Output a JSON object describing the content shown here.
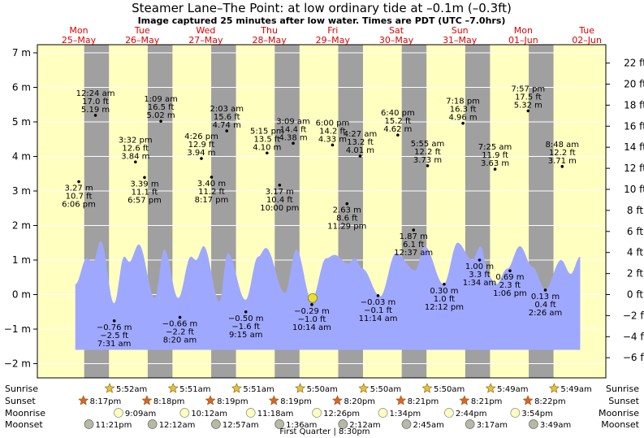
{
  "title": "Steamer Lane–The Point: at low  ordinary tide at –0.1m (–0.3ft)",
  "subtitle": "Image captured 25 minutes after low water. Times are PDT (UTC –7.0hrs)",
  "chart_data": {
    "type": "area",
    "day_labels": [
      {
        "dow": "Mon",
        "date": "25–May"
      },
      {
        "dow": "Tue",
        "date": "26–May"
      },
      {
        "dow": "Wed",
        "date": "27–May"
      },
      {
        "dow": "Thu",
        "date": "28–May"
      },
      {
        "dow": "Fri",
        "date": "29–May"
      },
      {
        "dow": "Sat",
        "date": "30–May"
      },
      {
        "dow": "Sun",
        "date": "31–May"
      },
      {
        "dow": "Mon",
        "date": "01–Jun"
      },
      {
        "dow": "Tue",
        "date": "02–Jun"
      }
    ],
    "y_left_unit": "m",
    "y_left_range": [
      -2.2,
      7.2
    ],
    "y_left_ticks": [
      "7 m",
      "6 m",
      "5 m",
      "4 m",
      "3 m",
      "2 m",
      "1 m",
      "0 m",
      "−1 m",
      "−2 m"
    ],
    "y_right_ticks": [
      "22 ft",
      "20 ft",
      "18 ft",
      "16 ft",
      "14 ft",
      "12 ft",
      "10 ft",
      "8 ft",
      "6 ft",
      "4 ft",
      "2 ft",
      "0 ft",
      "−2 ft",
      "−4 ft",
      "−6 ft"
    ],
    "night_bands": [
      [
        0.84,
        1.23
      ],
      [
        1.84,
        2.23
      ],
      [
        2.84,
        3.23
      ],
      [
        3.84,
        4.23
      ],
      [
        4.84,
        5.23
      ],
      [
        5.84,
        6.23
      ],
      [
        6.84,
        7.23
      ],
      [
        7.84,
        8.23
      ]
    ],
    "tide_events": [
      {
        "t": 0.755,
        "m": 3.27,
        "lines": [
          "3.27 m",
          "10.7 ft",
          "6:06 pm"
        ],
        "pos": "below"
      },
      {
        "t": 1.017,
        "m": 5.19,
        "lines": [
          "12:24 am",
          "17.0 ft",
          "5.19 m"
        ],
        "pos": "above"
      },
      {
        "t": 1.313,
        "m": -0.76,
        "lines": [
          "−0.76 m",
          "−2.5 ft",
          "7:31 am"
        ],
        "pos": "below"
      },
      {
        "t": 1.647,
        "m": 3.84,
        "lines": [
          "3:32 pm",
          "12.6 ft",
          "3.84 m"
        ],
        "pos": "above"
      },
      {
        "t": 1.79,
        "m": 3.39,
        "lines": [
          "3.39 m",
          "11.1 ft",
          "6:57 pm"
        ],
        "pos": "below"
      },
      {
        "t": 2.047,
        "m": 5.02,
        "lines": [
          "1:09 am",
          "16.5 ft",
          "5.02 m"
        ],
        "pos": "above"
      },
      {
        "t": 2.347,
        "m": -0.66,
        "lines": [
          "−0.66 m",
          "−2.2 ft",
          "8:20 am"
        ],
        "pos": "below"
      },
      {
        "t": 2.685,
        "m": 3.94,
        "lines": [
          "4:26 pm",
          "12.9 ft",
          "3.94 m"
        ],
        "pos": "above"
      },
      {
        "t": 2.845,
        "m": 3.4,
        "lines": [
          "3.40 m",
          "11.2 ft",
          "8:17 pm"
        ],
        "pos": "below"
      },
      {
        "t": 3.085,
        "m": 4.74,
        "lines": [
          "2:03 am",
          "15.6 ft",
          "4.74 m"
        ],
        "pos": "above"
      },
      {
        "t": 3.385,
        "m": -0.5,
        "lines": [
          "−0.50 m",
          "−1.6 ft",
          "9:15 am"
        ],
        "pos": "below"
      },
      {
        "t": 3.719,
        "m": 4.1,
        "lines": [
          "5:15 pm",
          "13.5 ft",
          "4.10 m"
        ],
        "pos": "above"
      },
      {
        "t": 3.917,
        "m": 3.17,
        "lines": [
          "3.17 m",
          "10.4 ft",
          "10:00 pm"
        ],
        "pos": "below"
      },
      {
        "t": 4.131,
        "m": 4.38,
        "lines": [
          "3:09 am",
          "14.4 ft",
          "4.38 m"
        ],
        "pos": "above"
      },
      {
        "t": 4.424,
        "m": -0.29,
        "lines": [
          "−0.29 m",
          "−1.0 ft",
          "10:14 am"
        ],
        "pos": "below"
      },
      {
        "t": 4.75,
        "m": 4.33,
        "lines": [
          "6:00 pm",
          "14.2 ft",
          "4.33 m"
        ],
        "pos": "above"
      },
      {
        "t": 4.978,
        "m": 2.63,
        "lines": [
          "2.63 m",
          "8.6 ft",
          "11:29 pm"
        ],
        "pos": "below"
      },
      {
        "t": 5.185,
        "m": 4.01,
        "lines": [
          "4:27 am",
          "13.2 ft",
          "4.01 m"
        ],
        "pos": "above"
      },
      {
        "t": 5.467,
        "m": -0.03,
        "lines": [
          "−0.03 m",
          "−0.1 ft",
          "11:14 am"
        ],
        "pos": "below"
      },
      {
        "t": 5.778,
        "m": 4.62,
        "lines": [
          "6:40 pm",
          "15.2 ft",
          "4.62 m"
        ],
        "pos": "above"
      },
      {
        "t": 6.026,
        "m": 1.87,
        "lines": [
          "1.87 m",
          "6.1 ft",
          "12:37 am"
        ],
        "pos": "below"
      },
      {
        "t": 6.247,
        "m": 3.73,
        "lines": [
          "5:55 am",
          "12.2 ft",
          "3.73 m"
        ],
        "pos": "above"
      },
      {
        "t": 6.508,
        "m": 0.3,
        "lines": [
          "0.30 m",
          "1.0 ft",
          "12:12 pm"
        ],
        "pos": "below"
      },
      {
        "t": 6.804,
        "m": 4.96,
        "lines": [
          "7:18 pm",
          "16.3 ft",
          "4.96 m"
        ],
        "pos": "above"
      },
      {
        "t": 7.065,
        "m": 1.0,
        "lines": [
          "1.00 m",
          "3.3 ft",
          "1:34 am"
        ],
        "pos": "below"
      },
      {
        "t": 7.309,
        "m": 3.63,
        "lines": [
          "7:25 am",
          "11.9 ft",
          "3.63 m"
        ],
        "pos": "above"
      },
      {
        "t": 7.544,
        "m": 0.69,
        "lines": [
          "0.69 m",
          "2.3 ft",
          "1:06 pm"
        ],
        "pos": "below"
      },
      {
        "t": 7.83,
        "m": 5.32,
        "lines": [
          "7:57 pm",
          "17.5 ft",
          "5.32 m"
        ],
        "pos": "above"
      },
      {
        "t": 8.101,
        "m": 0.13,
        "lines": [
          "0.13 m",
          "0.4 ft",
          "2:26 am"
        ],
        "pos": "below"
      },
      {
        "t": 8.367,
        "m": 3.71,
        "lines": [
          "8:48 am",
          "12.2 ft",
          "3.71 m"
        ],
        "pos": "above"
      }
    ],
    "tide_curve": {
      "t_start": 0.7,
      "t_end": 8.65,
      "base_m": -1.6,
      "extremes": [
        [
          0.7,
          0.3
        ],
        [
          0.88,
          1.05
        ],
        [
          0.98,
          0.95
        ],
        [
          1.1,
          1.55
        ],
        [
          1.31,
          -0.25
        ],
        [
          1.47,
          1.1
        ],
        [
          1.55,
          0.95
        ],
        [
          1.7,
          1.45
        ],
        [
          1.95,
          -0.1
        ],
        [
          2.1,
          1.3
        ],
        [
          2.32,
          -0.1
        ],
        [
          2.52,
          1.1
        ],
        [
          2.6,
          1.0
        ],
        [
          2.72,
          1.4
        ],
        [
          2.97,
          -0.2
        ],
        [
          3.1,
          1.2
        ],
        [
          3.38,
          -0.15
        ],
        [
          3.58,
          1.1
        ],
        [
          3.7,
          1.35
        ],
        [
          4.0,
          0.05
        ],
        [
          4.18,
          1.3
        ],
        [
          4.42,
          -0.15
        ],
        [
          4.65,
          1.05
        ],
        [
          4.78,
          1.15
        ],
        [
          5.0,
          0.9
        ],
        [
          5.1,
          1.05
        ],
        [
          5.22,
          0.75
        ],
        [
          5.5,
          -0.05
        ],
        [
          5.75,
          1.2
        ],
        [
          6.05,
          0.7
        ],
        [
          6.2,
          1.4
        ],
        [
          6.5,
          0.3
        ],
        [
          6.72,
          1.5
        ],
        [
          6.95,
          1.0
        ],
        [
          7.08,
          1.4
        ],
        [
          7.22,
          0.5
        ],
        [
          7.33,
          0.3
        ],
        [
          7.5,
          0.75
        ],
        [
          7.7,
          1.4
        ],
        [
          7.9,
          0.8
        ],
        [
          8.1,
          0.15
        ],
        [
          8.35,
          1.0
        ],
        [
          8.5,
          0.6
        ],
        [
          8.65,
          1.1
        ]
      ]
    },
    "current_marker": {
      "t": 4.437,
      "m": -0.1
    }
  },
  "astro": {
    "row_labels": [
      "Sunrise",
      "Sunset",
      "Moonrise",
      "Moonset"
    ],
    "sunrise": [
      {
        "day": 1,
        "text": "5:52am"
      },
      {
        "day": 2,
        "text": "5:51am"
      },
      {
        "day": 3,
        "text": "5:51am"
      },
      {
        "day": 4,
        "text": "5:50am"
      },
      {
        "day": 5,
        "text": "5:50am"
      },
      {
        "day": 6,
        "text": "5:50am"
      },
      {
        "day": 7,
        "text": "5:49am"
      },
      {
        "day": 8,
        "text": "5:49am"
      }
    ],
    "sunset": [
      {
        "day": 1,
        "text": "8:17pm"
      },
      {
        "day": 2,
        "text": "8:18pm"
      },
      {
        "day": 3,
        "text": "8:19pm"
      },
      {
        "day": 4,
        "text": "8:19pm"
      },
      {
        "day": 5,
        "text": "8:20pm"
      },
      {
        "day": 6,
        "text": "8:21pm"
      },
      {
        "day": 7,
        "text": "8:21pm"
      },
      {
        "day": 8,
        "text": "8:22pm"
      }
    ],
    "moonrise": [
      {
        "day": 1,
        "text": "9:09am"
      },
      {
        "day": 2,
        "text": "10:12am"
      },
      {
        "day": 3,
        "text": "11:18am"
      },
      {
        "day": 4,
        "text": "12:26pm"
      },
      {
        "day": 5,
        "text": "1:34pm"
      },
      {
        "day": 6,
        "text": "2:44pm"
      },
      {
        "day": 7,
        "text": "3:54pm"
      }
    ],
    "moonset": [
      {
        "day": 1,
        "text": "11:21pm"
      },
      {
        "day": 2,
        "text": "12:12am"
      },
      {
        "day": 3,
        "text": "12:57am"
      },
      {
        "day": 4,
        "text": "1:36am"
      },
      {
        "day": 5,
        "text": "2:12am"
      },
      {
        "day": 6,
        "text": "2:45am"
      },
      {
        "day": 7,
        "text": "3:17am"
      },
      {
        "day": 8,
        "text": "3:49am"
      }
    ],
    "moon_phase": "First Quarter | 8:30pm"
  },
  "colors": {
    "day_bg": "#ffffc0",
    "night_bg": "#a0a0a0",
    "water": "#9fa8ff",
    "grid": "#ffffff",
    "day_label": "#e00000",
    "sun_star": "#e8c040",
    "sunset_star": "#e06030",
    "moonrise": "#ffffc0",
    "moonset": "#b8b8a8",
    "marker": "#e8e030"
  }
}
